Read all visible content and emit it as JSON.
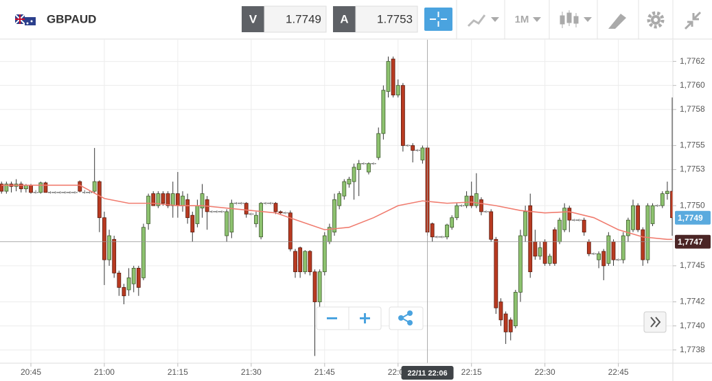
{
  "header": {
    "symbol": "GBPAUD",
    "bid_label": "V",
    "bid": "1.7749",
    "ask_label": "A",
    "ask": "1.7753",
    "timeframe": "1M"
  },
  "chart_data": {
    "type": "candlestick",
    "x": [
      "20:39",
      "20:40",
      "20:41",
      "20:42",
      "20:43",
      "20:44",
      "20:45",
      "20:46",
      "20:47",
      "20:48",
      "20:49",
      "20:50",
      "20:51",
      "20:52",
      "20:53",
      "20:54",
      "20:55",
      "20:56",
      "20:57",
      "20:58",
      "20:59",
      "21:00",
      "21:01",
      "21:02",
      "21:03",
      "21:04",
      "21:05",
      "21:06",
      "21:07",
      "21:08",
      "21:09",
      "21:10",
      "21:11",
      "21:12",
      "21:13",
      "21:14",
      "21:15",
      "21:16",
      "21:17",
      "21:18",
      "21:19",
      "21:20",
      "21:21",
      "21:22",
      "21:23",
      "21:24",
      "21:25",
      "21:26",
      "21:27",
      "21:28",
      "21:29",
      "21:30",
      "21:31",
      "21:32",
      "21:33",
      "21:34",
      "21:35",
      "21:36",
      "21:37",
      "21:38",
      "21:39",
      "21:40",
      "21:41",
      "21:42",
      "21:43",
      "21:44",
      "21:45",
      "21:46",
      "21:47",
      "21:48",
      "21:49",
      "21:50",
      "21:51",
      "21:52",
      "21:53",
      "21:54",
      "21:55",
      "21:56",
      "21:57",
      "21:58",
      "21:59",
      "22:00",
      "22:01",
      "22:02",
      "22:03",
      "22:04",
      "22:05",
      "22:06",
      "22:07",
      "22:08",
      "22:09",
      "22:10",
      "22:11",
      "22:12",
      "22:13",
      "22:14",
      "22:15",
      "22:16",
      "22:17",
      "22:18",
      "22:19",
      "22:20",
      "22:21",
      "22:22",
      "22:23",
      "22:24",
      "22:25",
      "22:26",
      "22:27",
      "22:28",
      "22:29",
      "22:30",
      "22:31",
      "22:32",
      "22:33",
      "22:34",
      "22:35",
      "22:36",
      "22:37",
      "22:38",
      "22:39",
      "22:40",
      "22:41",
      "22:42",
      "22:43",
      "22:44",
      "22:45",
      "22:46",
      "22:47",
      "22:48",
      "22:49",
      "22:50",
      "22:51",
      "22:52",
      "22:53",
      "22:54",
      "22:55",
      "22:56"
    ],
    "open": [
      1.77518,
      1.77512,
      1.77518,
      1.77516,
      1.77518,
      1.77514,
      1.77517,
      1.77511,
      1.77511,
      1.77519,
      1.77511,
      1.77511,
      1.77511,
      1.77511,
      1.77511,
      1.77511,
      1.7752,
      1.77511,
      1.77511,
      1.77512,
      1.7752,
      1.7749,
      1.77455,
      1.77472,
      1.77444,
      1.77432,
      1.7743,
      1.77435,
      1.77448,
      1.7744,
      1.77485,
      1.7751,
      1.775,
      1.7751,
      1.7751,
      1.775,
      1.7751,
      1.775,
      1.77505,
      1.77492,
      1.77485,
      1.77498,
      1.77505,
      1.77495,
      1.77495,
      1.77495,
      1.77475,
      1.77478,
      1.77502,
      1.77502,
      1.77502,
      1.77493,
      1.77485,
      1.77474,
      1.77502,
      1.77502,
      1.77502,
      1.77495,
      1.77494,
      1.77494,
      1.77462,
      1.77465,
      1.77445,
      1.77462,
      1.77445,
      1.7742,
      1.77445,
      1.7747,
      1.77478,
      1.775,
      1.77508,
      1.77518,
      1.7752,
      1.7753,
      1.77535,
      1.77528,
      1.77535,
      1.7754,
      1.7756,
      1.77595,
      1.77622,
      1.77592,
      1.776,
      1.7755,
      1.7755,
      1.77546,
      1.77538,
      1.77548,
      1.77485,
      1.77474,
      1.77474,
      1.77474,
      1.77482,
      1.7749,
      1.775,
      1.775,
      1.77508,
      1.775,
      1.77505,
      1.77495,
      1.77495,
      1.77472,
      1.7742,
      1.7741,
      1.77405,
      1.774,
      1.77428,
      1.77475,
      1.775,
      1.7747,
      1.77458,
      1.7747,
      1.77452,
      1.7748,
      1.7747,
      1.7748,
      1.77498,
      1.77488,
      1.77488,
      1.77488,
      1.7747,
      1.7746,
      1.77455,
      1.77462,
      1.77452,
      1.7747,
      1.77455,
      1.77455,
      1.77475,
      1.7748,
      1.775,
      1.7748,
      1.77455,
      1.77485,
      1.775,
      1.775,
      1.7751,
      1.77512
    ],
    "high": [
      1.7752,
      1.7752,
      1.7752,
      1.77522,
      1.7752,
      1.77518,
      1.77518,
      1.77513,
      1.7752,
      1.7752,
      1.77512,
      1.77512,
      1.77512,
      1.77512,
      1.77512,
      1.77512,
      1.77521,
      1.77513,
      1.77512,
      1.77548,
      1.77521,
      1.77495,
      1.7748,
      1.77475,
      1.77446,
      1.77435,
      1.77448,
      1.7745,
      1.7745,
      1.77485,
      1.7751,
      1.77512,
      1.77512,
      1.77512,
      1.77512,
      1.7752,
      1.77528,
      1.77512,
      1.7751,
      1.77495,
      1.77505,
      1.77518,
      1.77508,
      1.77496,
      1.77496,
      1.77496,
      1.77497,
      1.77505,
      1.77503,
      1.77503,
      1.77503,
      1.77494,
      1.77495,
      1.77503,
      1.77503,
      1.77503,
      1.77503,
      1.77496,
      1.77495,
      1.77496,
      1.77464,
      1.77466,
      1.77463,
      1.77463,
      1.77447,
      1.77447,
      1.77478,
      1.77485,
      1.7751,
      1.77512,
      1.77522,
      1.77524,
      1.77535,
      1.77538,
      1.77536,
      1.77536,
      1.77536,
      1.77565,
      1.776,
      1.77624,
      1.77624,
      1.77605,
      1.77602,
      1.77551,
      1.77552,
      1.77547,
      1.7755,
      1.7755,
      1.77486,
      1.77475,
      1.77475,
      1.77485,
      1.77492,
      1.77502,
      1.77501,
      1.77512,
      1.7752,
      1.77527,
      1.77507,
      1.77496,
      1.77497,
      1.77474,
      1.77423,
      1.77412,
      1.77407,
      1.7743,
      1.7748,
      1.775,
      1.7751,
      1.7748,
      1.7747,
      1.77472,
      1.7746,
      1.77482,
      1.7749,
      1.77502,
      1.775,
      1.77489,
      1.77489,
      1.7749,
      1.77472,
      1.77461,
      1.77462,
      1.77464,
      1.77478,
      1.77472,
      1.77456,
      1.77478,
      1.7749,
      1.77505,
      1.77502,
      1.77482,
      1.77502,
      1.77502,
      1.77501,
      1.77512,
      1.7752,
      1.7759
    ],
    "low": [
      1.7751,
      1.7751,
      1.77511,
      1.77512,
      1.77511,
      1.77511,
      1.7751,
      1.7751,
      1.7751,
      1.77511,
      1.7751,
      1.7751,
      1.7751,
      1.7751,
      1.7751,
      1.7751,
      1.77511,
      1.7751,
      1.7751,
      1.7751,
      1.77478,
      1.77434,
      1.7745,
      1.7744,
      1.77425,
      1.77418,
      1.77425,
      1.77428,
      1.77425,
      1.77438,
      1.7748,
      1.775,
      1.77498,
      1.775,
      1.77498,
      1.7749,
      1.7749,
      1.77495,
      1.77485,
      1.7747,
      1.77482,
      1.7749,
      1.7748,
      1.77494,
      1.77494,
      1.77494,
      1.7747,
      1.77473,
      1.77501,
      1.77501,
      1.7749,
      1.77492,
      1.77482,
      1.77472,
      1.77501,
      1.77501,
      1.77493,
      1.77493,
      1.77493,
      1.77462,
      1.7744,
      1.7744,
      1.77443,
      1.77442,
      1.77375,
      1.77415,
      1.77442,
      1.77468,
      1.77475,
      1.77497,
      1.77505,
      1.77515,
      1.77505,
      1.77508,
      1.77534,
      1.77526,
      1.77534,
      1.77538,
      1.77555,
      1.7759,
      1.7759,
      1.7759,
      1.77545,
      1.77549,
      1.77536,
      1.77545,
      1.77535,
      1.77475,
      1.7747,
      1.77473,
      1.77473,
      1.77472,
      1.7748,
      1.77488,
      1.77499,
      1.77498,
      1.77498,
      1.77498,
      1.77492,
      1.77494,
      1.7747,
      1.7741,
      1.774,
      1.77385,
      1.77388,
      1.77398,
      1.7742,
      1.7747,
      1.7744,
      1.77455,
      1.77455,
      1.7745,
      1.7745,
      1.7745,
      1.77468,
      1.77478,
      1.77478,
      1.77487,
      1.77487,
      1.77475,
      1.77458,
      1.77459,
      1.77448,
      1.77438,
      1.7745,
      1.7745,
      1.77454,
      1.77452,
      1.7747,
      1.77478,
      1.77478,
      1.7745,
      1.77452,
      1.77483,
      1.77499,
      1.77498,
      1.77505,
      1.77475
    ],
    "close": [
      1.77512,
      1.77518,
      1.77516,
      1.77518,
      1.77514,
      1.77517,
      1.77511,
      1.77511,
      1.77519,
      1.77511,
      1.77511,
      1.77511,
      1.77511,
      1.77511,
      1.77511,
      1.77511,
      1.77512,
      1.77511,
      1.77511,
      1.7752,
      1.7749,
      1.77455,
      1.77475,
      1.77444,
      1.77432,
      1.77425,
      1.7744,
      1.77448,
      1.77432,
      1.77482,
      1.77508,
      1.775,
      1.7751,
      1.77502,
      1.775,
      1.7751,
      1.775,
      1.77508,
      1.7749,
      1.77478,
      1.775,
      1.7751,
      1.77495,
      1.77495,
      1.77495,
      1.77495,
      1.77495,
      1.77502,
      1.77502,
      1.77502,
      1.77493,
      1.77493,
      1.77492,
      1.77502,
      1.77502,
      1.77502,
      1.77495,
      1.77494,
      1.77494,
      1.77464,
      1.77445,
      1.77445,
      1.77462,
      1.77445,
      1.7742,
      1.77445,
      1.77475,
      1.77482,
      1.77505,
      1.7751,
      1.7752,
      1.77522,
      1.77532,
      1.77535,
      1.77535,
      1.77535,
      1.77535,
      1.7756,
      1.77596,
      1.7762,
      1.77592,
      1.776,
      1.7755,
      1.7755,
      1.77546,
      1.77546,
      1.77548,
      1.77478,
      1.77474,
      1.77474,
      1.77474,
      1.77484,
      1.7749,
      1.775,
      1.775,
      1.77508,
      1.775,
      1.7751,
      1.77495,
      1.77495,
      1.77472,
      1.77415,
      1.77405,
      1.77395,
      1.77395,
      1.77428,
      1.77475,
      1.77495,
      1.77445,
      1.77458,
      1.77465,
      1.77452,
      1.77458,
      1.77452,
      1.77488,
      1.77498,
      1.77488,
      1.77488,
      1.77488,
      1.77478,
      1.7746,
      1.7746,
      1.7746,
      1.7745,
      1.77475,
      1.77455,
      1.77455,
      1.77475,
      1.77488,
      1.775,
      1.7748,
      1.77455,
      1.775,
      1.775,
      1.775,
      1.7751,
      1.77512,
      1.7749
    ],
    "up_color": "#8dc26f",
    "down_color": "#b83a21",
    "flat_color": "#777777",
    "ma": {
      "color": "#f07b6e",
      "x": [
        "20:39",
        "20:45",
        "20:50",
        "20:55",
        "21:00",
        "21:05",
        "21:10",
        "21:15",
        "21:20",
        "21:25",
        "21:30",
        "21:35",
        "21:40",
        "21:45",
        "21:50",
        "21:55",
        "22:00",
        "22:05",
        "22:10",
        "22:15",
        "22:20",
        "22:25",
        "22:30",
        "22:35",
        "22:40",
        "22:45",
        "22:50",
        "22:55",
        "22:56"
      ],
      "values": [
        1.77517,
        1.77517,
        1.77517,
        1.77517,
        1.77506,
        1.77502,
        1.77502,
        1.775,
        1.775,
        1.77498,
        1.77496,
        1.77494,
        1.77487,
        1.7748,
        1.77482,
        1.7749,
        1.775,
        1.77504,
        1.77502,
        1.77503,
        1.775,
        1.77496,
        1.77494,
        1.77495,
        1.7749,
        1.7748,
        1.77474,
        1.77472,
        1.77472
      ]
    },
    "ylim": [
      1.77369,
      1.77638
    ],
    "yticks": [
      {
        "value": 1.7738,
        "label": "1,7738"
      },
      {
        "value": 1.774,
        "label": "1,7740"
      },
      {
        "value": 1.7742,
        "label": "1,7742"
      },
      {
        "value": 1.7745,
        "label": "1,7745"
      },
      {
        "value": 1.7747,
        "label": "1,7747"
      },
      {
        "value": 1.775,
        "label": "1,7750"
      },
      {
        "value": 1.7753,
        "label": "1,7753"
      },
      {
        "value": 1.7755,
        "label": "1,7755"
      },
      {
        "value": 1.7758,
        "label": "1,7758"
      },
      {
        "value": 1.776,
        "label": "1,7760"
      },
      {
        "value": 1.7762,
        "label": "1,7762"
      }
    ],
    "xticks": [
      "20:45",
      "21:00",
      "21:15",
      "21:30",
      "21:45",
      "22:00",
      "22:15",
      "22:30",
      "22:45"
    ],
    "grid": true,
    "last_price": {
      "value": 1.7749,
      "label": "1,7749",
      "color": "#5aaade"
    },
    "crosshair": {
      "x": "22:06",
      "time_label": "22/11 22:06",
      "price": {
        "value": 1.7747,
        "label": "1,7747"
      },
      "color": "#4a2525"
    }
  }
}
